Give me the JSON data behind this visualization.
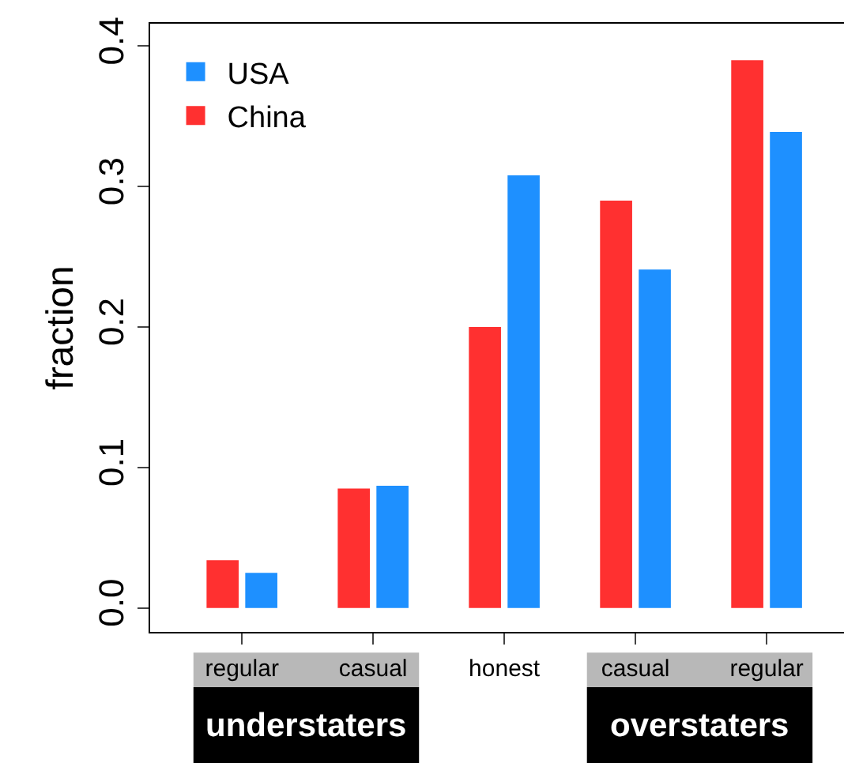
{
  "chart_data": {
    "type": "bar",
    "ylabel": "fraction",
    "categories": [
      "regular",
      "casual",
      "honest",
      "casual",
      "regular"
    ],
    "series": [
      {
        "name": "China",
        "color": "#ff3030",
        "values": [
          0.034,
          0.085,
          0.2,
          0.29,
          0.39
        ]
      },
      {
        "name": "USA",
        "color": "#1e90ff",
        "values": [
          0.025,
          0.087,
          0.308,
          0.241,
          0.339
        ]
      }
    ],
    "annotations": [
      "understaters",
      "overstaters"
    ],
    "ylim": [
      -0.017,
      0.416
    ],
    "yticks": [
      {
        "value": 0,
        "label": "0.0"
      },
      0.1,
      0.2,
      0.3,
      0.4
    ],
    "legend": "top left"
  }
}
